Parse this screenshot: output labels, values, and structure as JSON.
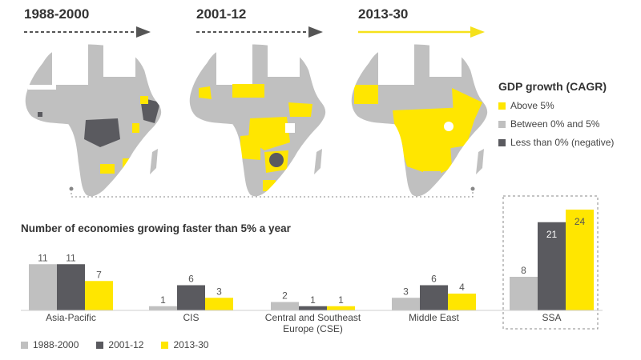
{
  "periods": [
    {
      "label": "1988-2000",
      "arrow_style": "dotted",
      "arrow_color": "#555555"
    },
    {
      "label": "2001-12",
      "arrow_style": "dotted",
      "arrow_color": "#555555"
    },
    {
      "label": "2013-30",
      "arrow_style": "solid",
      "arrow_color": "#f5e11b"
    }
  ],
  "map_legend": {
    "title": "GDP growth (CAGR)",
    "items": [
      {
        "label": "Above 5%",
        "color": "#ffe600"
      },
      {
        "label": "Between 0% and 5%",
        "color": "#c0c0c0"
      },
      {
        "label": "Less than 0% (negative)",
        "color": "#5a5a5f"
      }
    ]
  },
  "chart_data": {
    "type": "bar",
    "title": "Number of economies growing faster than 5% a year",
    "categories": [
      "Asia-Pacific",
      "CIS",
      "Central and Southeast Europe (CSE)",
      "Middle East",
      "SSA"
    ],
    "series": [
      {
        "name": "1988-2000",
        "values": [
          11,
          1,
          2,
          3,
          8
        ],
        "color": "#c0c0c0"
      },
      {
        "name": "2001-12",
        "values": [
          11,
          6,
          1,
          6,
          21
        ],
        "color": "#5a5a5f"
      },
      {
        "name": "2013-30",
        "values": [
          7,
          3,
          1,
          4,
          24
        ],
        "color": "#ffe600"
      }
    ],
    "highlighted_category": "SSA",
    "grid": false
  }
}
